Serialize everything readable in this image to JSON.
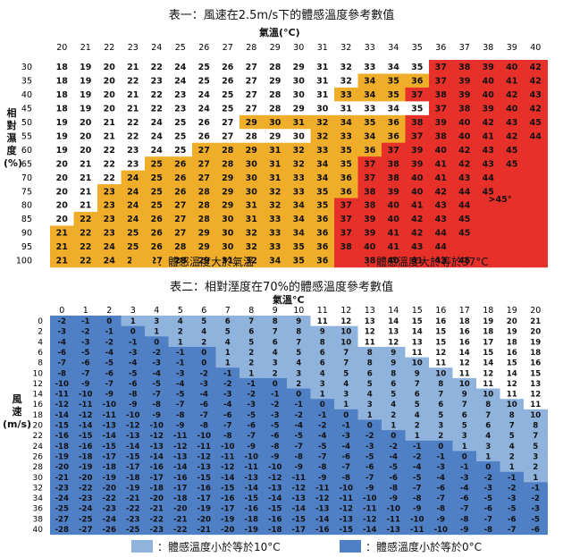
{
  "chart_data": [
    {
      "type": "heatmap",
      "title": "表一：風速在2.5m/s下的體感溫度參考數值",
      "xlabel": "氣溫(°C)",
      "ylabel": "相對濕度(%)",
      "x": [
        20,
        21,
        22,
        23,
        24,
        25,
        26,
        27,
        28,
        29,
        30,
        31,
        32,
        33,
        34,
        35,
        36,
        37,
        38,
        39,
        40
      ],
      "y": [
        30,
        35,
        40,
        45,
        50,
        55,
        60,
        65,
        70,
        75,
        80,
        85,
        90,
        95,
        100
      ],
      "values": [
        [
          18,
          19,
          20,
          21,
          22,
          24,
          25,
          26,
          27,
          28,
          29,
          31,
          32,
          33,
          34,
          35,
          37,
          38,
          39,
          40,
          42
        ],
        [
          18,
          19,
          20,
          22,
          23,
          24,
          25,
          26,
          27,
          29,
          30,
          31,
          32,
          34,
          35,
          36,
          37,
          39,
          40,
          41,
          42
        ],
        [
          18,
          19,
          20,
          21,
          22,
          23,
          24,
          25,
          27,
          28,
          30,
          31,
          33,
          34,
          35,
          37,
          38,
          39,
          40,
          42,
          43
        ],
        [
          18,
          19,
          20,
          21,
          22,
          23,
          24,
          25,
          27,
          28,
          29,
          30,
          31,
          33,
          34,
          35,
          37,
          38,
          39,
          40,
          42
        ],
        [
          19,
          20,
          21,
          22,
          24,
          25,
          26,
          27,
          29,
          30,
          31,
          32,
          34,
          35,
          36,
          38,
          39,
          40,
          42,
          43,
          45
        ],
        [
          19,
          20,
          21,
          22,
          24,
          25,
          26,
          27,
          28,
          29,
          30,
          32,
          33,
          34,
          36,
          37,
          38,
          40,
          41,
          42,
          44
        ],
        [
          19,
          20,
          22,
          23,
          24,
          25,
          27,
          28,
          29,
          31,
          32,
          33,
          35,
          36,
          37,
          39,
          40,
          42,
          43,
          45,
          null
        ],
        [
          20,
          21,
          22,
          23,
          25,
          26,
          27,
          28,
          30,
          31,
          32,
          34,
          35,
          37,
          38,
          39,
          41,
          42,
          43,
          45,
          null
        ],
        [
          20,
          21,
          22,
          24,
          25,
          26,
          27,
          29,
          30,
          31,
          33,
          34,
          36,
          37,
          38,
          40,
          41,
          43,
          44,
          null,
          null
        ],
        [
          20,
          21,
          23,
          24,
          25,
          26,
          28,
          29,
          30,
          32,
          33,
          35,
          36,
          38,
          39,
          40,
          42,
          44,
          45,
          null,
          null
        ],
        [
          20,
          21,
          23,
          24,
          25,
          27,
          28,
          29,
          31,
          32,
          34,
          35,
          37,
          38,
          40,
          41,
          43,
          44,
          null,
          null,
          null
        ],
        [
          20,
          22,
          23,
          24,
          26,
          27,
          28,
          30,
          31,
          33,
          34,
          36,
          37,
          39,
          40,
          42,
          43,
          45,
          null,
          null,
          null
        ],
        [
          21,
          22,
          23,
          25,
          26,
          27,
          29,
          30,
          32,
          33,
          34,
          36,
          37,
          39,
          41,
          42,
          44,
          45,
          null,
          null,
          null
        ],
        [
          21,
          22,
          24,
          25,
          26,
          28,
          29,
          30,
          32,
          33,
          35,
          36,
          38,
          40,
          41,
          43,
          44,
          null,
          null,
          null,
          null
        ],
        [
          21,
          22,
          24,
          25,
          27,
          28,
          29,
          31,
          32,
          34,
          35,
          36,
          37,
          38,
          40,
          41,
          43,
          45,
          null,
          null,
          null
        ]
      ],
      "overflow_label": ">45°",
      "legend": [
        "：體感溫度大於氣溫",
        "：體感溫度大於等於37°C"
      ],
      "colors": {
        "neutral": "#ffffff",
        "above": "#f0ad2a",
        "hot": "#e8302a"
      }
    },
    {
      "type": "heatmap",
      "title": "表二：相對溼度在70%的體感溫度參考數值",
      "xlabel": "氣溫°C",
      "ylabel": "風速(m/s)",
      "x": [
        0,
        1,
        2,
        3,
        4,
        5,
        6,
        7,
        8,
        9,
        10,
        11,
        12,
        13,
        14,
        15,
        16,
        17,
        18,
        19,
        20
      ],
      "y": [
        0,
        2,
        4,
        6,
        8,
        10,
        12,
        14,
        16,
        18,
        20,
        22,
        24,
        26,
        28,
        30,
        32,
        34,
        36,
        38,
        40
      ],
      "values": [
        [
          -2,
          -1,
          0,
          1,
          3,
          4,
          5,
          6,
          7,
          8,
          9,
          11,
          12,
          13,
          14,
          15,
          16,
          18,
          19,
          20,
          21
        ],
        [
          -3,
          -2,
          -1,
          0,
          1,
          2,
          4,
          5,
          6,
          7,
          8,
          9,
          10,
          12,
          13,
          14,
          15,
          16,
          18,
          19,
          20
        ],
        [
          -4,
          -3,
          -2,
          -1,
          0,
          1,
          2,
          4,
          5,
          6,
          7,
          8,
          10,
          11,
          12,
          13,
          15,
          16,
          17,
          18,
          19
        ],
        [
          -6,
          -5,
          -4,
          -3,
          -2,
          -1,
          0,
          1,
          2,
          4,
          5,
          6,
          7,
          8,
          9,
          11,
          12,
          14,
          15,
          16,
          18
        ],
        [
          -7,
          -6,
          -5,
          -4,
          -3,
          -1,
          0,
          1,
          2,
          3,
          4,
          6,
          7,
          8,
          9,
          10,
          11,
          12,
          14,
          15,
          16
        ],
        [
          -8,
          -7,
          -6,
          -5,
          -4,
          -3,
          -2,
          -1,
          1,
          2,
          3,
          4,
          5,
          6,
          8,
          9,
          10,
          11,
          12,
          14,
          15
        ],
        [
          -10,
          -9,
          -7,
          -6,
          -5,
          -4,
          -3,
          -2,
          -1,
          0,
          2,
          3,
          4,
          5,
          6,
          7,
          8,
          10,
          11,
          12,
          13
        ],
        [
          -11,
          -10,
          -9,
          -8,
          -7,
          -5,
          -4,
          -3,
          -2,
          -1,
          0,
          1,
          3,
          4,
          5,
          6,
          7,
          9,
          10,
          11,
          12
        ],
        [
          -12,
          -11,
          -10,
          -9,
          -8,
          -7,
          -6,
          -4,
          -3,
          -2,
          -1,
          0,
          1,
          3,
          4,
          5,
          6,
          7,
          8,
          10,
          11
        ],
        [
          -14,
          -12,
          -11,
          -10,
          -9,
          -8,
          -7,
          -6,
          -5,
          -3,
          -2,
          -1,
          0,
          1,
          2,
          4,
          5,
          6,
          7,
          8,
          10
        ],
        [
          -15,
          -14,
          -13,
          -12,
          -10,
          -9,
          -8,
          -7,
          -6,
          -5,
          -4,
          -2,
          -1,
          0,
          1,
          2,
          3,
          5,
          6,
          7,
          8
        ],
        [
          -16,
          -15,
          -14,
          -13,
          -12,
          -11,
          -10,
          -8,
          -7,
          -6,
          -5,
          -4,
          -3,
          -2,
          0,
          1,
          2,
          3,
          4,
          5,
          7
        ],
        [
          -18,
          -16,
          -15,
          -14,
          -13,
          -12,
          -11,
          -10,
          -9,
          -8,
          -7,
          -5,
          -4,
          -3,
          -2,
          -1,
          0,
          1,
          3,
          4,
          5
        ],
        [
          -19,
          -18,
          -17,
          -15,
          -14,
          -13,
          -12,
          -11,
          -10,
          -9,
          -8,
          -7,
          -6,
          -5,
          -4,
          -2,
          -1,
          0,
          1,
          2,
          3
        ],
        [
          -20,
          -19,
          -18,
          -17,
          -16,
          -14,
          -13,
          -12,
          -11,
          -10,
          -9,
          -8,
          -7,
          -6,
          -5,
          -4,
          -3,
          -1,
          0,
          1,
          2
        ],
        [
          -21,
          -20,
          -19,
          -18,
          -17,
          -16,
          -15,
          -14,
          -13,
          -12,
          -11,
          -9,
          -8,
          -7,
          -6,
          -5,
          -4,
          -3,
          -2,
          -1,
          1
        ],
        [
          -23,
          -22,
          -20,
          -19,
          -18,
          -17,
          -16,
          -15,
          -14,
          -13,
          -12,
          -11,
          -10,
          -9,
          -8,
          -7,
          -6,
          -4,
          -3,
          -2,
          -1
        ],
        [
          -24,
          -23,
          -22,
          -21,
          -20,
          -18,
          -17,
          -16,
          -15,
          -14,
          -13,
          -12,
          -11,
          -10,
          -9,
          -8,
          -7,
          -6,
          -5,
          -3,
          -2
        ],
        [
          -25,
          -24,
          -23,
          -22,
          -21,
          -20,
          -19,
          -17,
          -16,
          -15,
          -14,
          -13,
          -12,
          -11,
          -10,
          -9,
          -8,
          -7,
          -6,
          -5,
          -3
        ],
        [
          -27,
          -25,
          -24,
          -23,
          -22,
          -21,
          -20,
          -19,
          -18,
          -16,
          -15,
          -14,
          -13,
          -12,
          -11,
          -10,
          -9,
          -8,
          -7,
          -6,
          -5
        ],
        [
          -28,
          -27,
          -26,
          -25,
          -23,
          -22,
          -21,
          -20,
          -19,
          -18,
          -17,
          -16,
          -15,
          -14,
          -13,
          -11,
          -10,
          -9,
          -8,
          -7,
          -6
        ]
      ],
      "legend": [
        "：體感溫度小於等於10°C",
        "：體感溫度小於等於0°C"
      ],
      "colors": {
        "neutral": "#ffffff",
        "cool": "#8fb3dc",
        "cold": "#4f7fc4"
      }
    }
  ]
}
